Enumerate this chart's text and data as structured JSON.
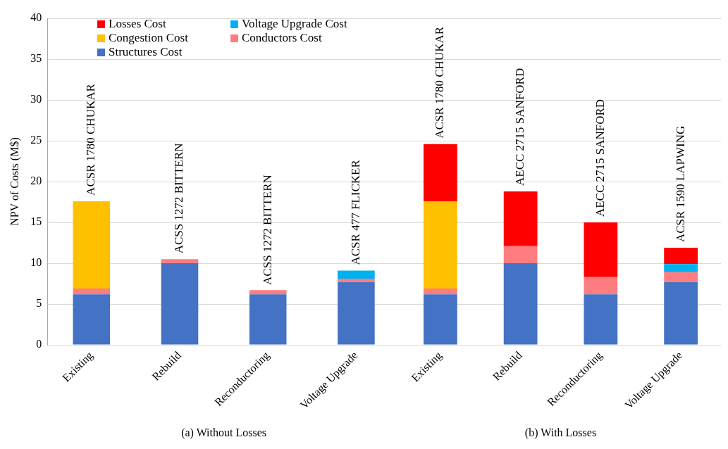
{
  "chart_data": [
    {
      "type": "bar",
      "stacked": true,
      "xlabel": "(a) Without Losses",
      "ylabel": "NPV of Costs (M$)",
      "categories": [
        "Existing",
        "Rebuild",
        "Reconductoring",
        "Voltage Upgrade"
      ],
      "ylim": [
        0,
        40
      ],
      "yticks": [
        0,
        5,
        10,
        15,
        20,
        25,
        30,
        35,
        40
      ],
      "grid": "y",
      "legend": "top left",
      "series": [
        {
          "name": "Structures Cost",
          "color": "#4472c4",
          "values": [
            6.2,
            10.0,
            6.2,
            7.7
          ]
        },
        {
          "name": "Conductors Cost",
          "color": "#ff7c80",
          "values": [
            0.7,
            0.5,
            0.5,
            0.4
          ]
        },
        {
          "name": "Congestion Cost",
          "color": "#ffc000",
          "values": [
            10.7,
            null,
            null,
            null
          ]
        },
        {
          "name": "Voltage Upgrade Cost",
          "color": "#00b0f0",
          "values": [
            null,
            null,
            null,
            1.0
          ]
        },
        {
          "name": "Losses Cost",
          "color": "#ff0000",
          "values": [
            null,
            null,
            null,
            null
          ]
        }
      ],
      "annotations": [
        {
          "text": "ACSR 1780 CHUKAR",
          "x": "Existing",
          "y": 17.6
        },
        {
          "text": "ACSS 1272 BITTERN",
          "x": "Rebuild",
          "y": 10.5
        },
        {
          "text": "ACSS 1272 BITTERN",
          "x": "Reconductoring",
          "y": 6.65
        },
        {
          "text": "ACSR 477 FLICKER",
          "x": "Voltage Upgrade",
          "y": 9.1
        }
      ]
    },
    {
      "type": "bar",
      "stacked": true,
      "xlabel": "(b) With Losses",
      "categories": [
        "Existing",
        "Rebuild",
        "Reconductoring",
        "Voltage Upgrade"
      ],
      "ylim": [
        0,
        40
      ],
      "yticks": [
        0,
        5,
        10,
        15,
        20,
        25,
        30,
        35,
        40
      ],
      "grid": "y",
      "tick_labels": "x",
      "series": [
        {
          "color": "#4472c4",
          "values": [
            6.2,
            10.0,
            6.2,
            7.7
          ]
        },
        {
          "color": "#ff7c80",
          "values": [
            0.7,
            2.1,
            2.1,
            1.2
          ]
        },
        {
          "color": "#ffc000",
          "values": [
            10.7,
            null,
            null,
            null
          ]
        },
        {
          "color": "#00b0f0",
          "values": [
            null,
            null,
            null,
            1.0
          ]
        },
        {
          "color": "#ff0000",
          "values": [
            7.0,
            6.7,
            6.7,
            2.0
          ]
        }
      ],
      "annotations": [
        {
          "text": "ACSR 1780 CHUKAR",
          "x": "Existing",
          "y": 24.6
        },
        {
          "text": "AECC 2715 SANFORD",
          "x": "Rebuild",
          "y": 18.8
        },
        {
          "text": "AECC 2715 SANFORD",
          "x": "Reconductoring",
          "y": 15.0
        },
        {
          "text": "ACSR 1590 LAPWING",
          "x": "Voltage Upgrade",
          "y": 11.9
        }
      ]
    }
  ]
}
